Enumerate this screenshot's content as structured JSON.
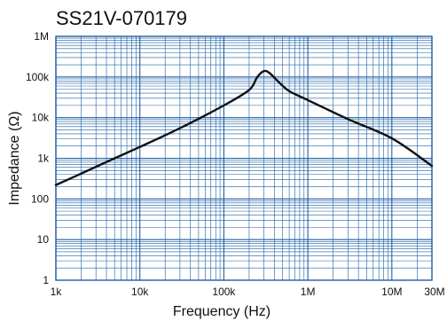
{
  "chart_data": {
    "type": "line",
    "title": "SS21V-070179",
    "xlabel": "Frequency (Hz)",
    "ylabel": "Impedance (Ω)",
    "x_scale": "log",
    "y_scale": "log",
    "xlim": [
      1000,
      30000000
    ],
    "ylim": [
      1,
      1000000
    ],
    "grid": true,
    "x_ticks": [
      {
        "value": 1000,
        "label": "1k"
      },
      {
        "value": 10000,
        "label": "10k"
      },
      {
        "value": 100000,
        "label": "100k"
      },
      {
        "value": 1000000,
        "label": "1M"
      },
      {
        "value": 10000000,
        "label": "10M"
      },
      {
        "value": 30000000,
        "label": "30M"
      }
    ],
    "y_ticks": [
      {
        "value": 1,
        "label": "1"
      },
      {
        "value": 10,
        "label": "10"
      },
      {
        "value": 100,
        "label": "100"
      },
      {
        "value": 1000,
        "label": "1k"
      },
      {
        "value": 10000,
        "label": "10k"
      },
      {
        "value": 100000,
        "label": "100k"
      },
      {
        "value": 1000000,
        "label": "1M"
      }
    ],
    "series": [
      {
        "color": "#111111",
        "points": [
          [
            1000,
            220
          ],
          [
            2000,
            420
          ],
          [
            5000,
            1000
          ],
          [
            10000,
            1900
          ],
          [
            30000,
            5500
          ],
          [
            100000,
            20000
          ],
          [
            200000,
            48000
          ],
          [
            250000,
            100000
          ],
          [
            300000,
            140000
          ],
          [
            350000,
            125000
          ],
          [
            450000,
            75000
          ],
          [
            600000,
            45000
          ],
          [
            1000000,
            27000
          ],
          [
            3000000,
            9200
          ],
          [
            10000000,
            3100
          ],
          [
            30000000,
            650
          ]
        ]
      }
    ]
  }
}
